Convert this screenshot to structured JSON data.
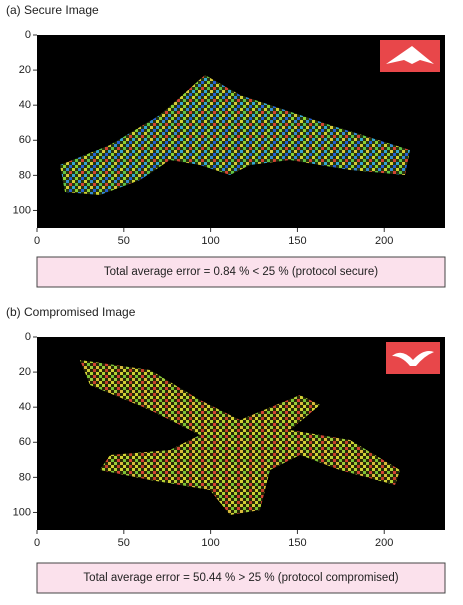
{
  "chart_data": [
    {
      "type": "image",
      "title": "(a) Secure Image",
      "xlim": [
        0,
        235
      ],
      "xticks": [
        0,
        50,
        100,
        150,
        200
      ],
      "ylim": [
        0,
        110
      ],
      "yticks": [
        0,
        20,
        40,
        60,
        80,
        100
      ],
      "y_inverted": true,
      "caption": "Total average error = 0.84 % < 25 % (protocol secure)"
    },
    {
      "type": "image",
      "title": "(b) Compromised Image",
      "xlim": [
        0,
        235
      ],
      "xticks": [
        0,
        50,
        100,
        150,
        200
      ],
      "ylim": [
        0,
        110
      ],
      "yticks": [
        0,
        20,
        40,
        60,
        80,
        100
      ],
      "y_inverted": true,
      "caption": "Total average error = 50.44 % > 25 % (protocol compromised)"
    }
  ]
}
